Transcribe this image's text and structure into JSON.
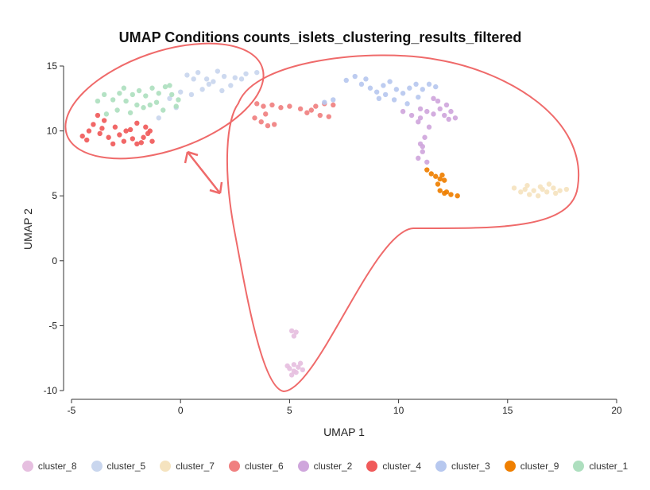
{
  "chart_data": {
    "type": "scatter",
    "title": "UMAP Conditions counts_islets_clustering_results_filtered",
    "xlabel": "UMAP 1",
    "ylabel": "UMAP 2",
    "xlim": [
      -5,
      20
    ],
    "ylim": [
      -10,
      15
    ],
    "xticks": [
      "-5",
      "0",
      "5",
      "10",
      "15",
      "20"
    ],
    "yticks": [
      "-10",
      "-5",
      "0",
      "5",
      "10",
      "15"
    ],
    "legend_position": "bottom",
    "series": [
      {
        "name": "cluster_8",
        "color": "#e6bfe0",
        "points": [
          [
            5.1,
            -5.4
          ],
          [
            5.3,
            -5.5
          ],
          [
            5.2,
            -5.8
          ],
          [
            4.9,
            -8.1
          ],
          [
            5.2,
            -8.0
          ],
          [
            5.4,
            -8.2
          ],
          [
            5.5,
            -7.9
          ],
          [
            5.3,
            -8.6
          ],
          [
            5.1,
            -8.8
          ],
          [
            5.0,
            -8.3
          ],
          [
            5.6,
            -8.4
          ],
          [
            5.2,
            -8.5
          ]
        ]
      },
      {
        "name": "cluster_5",
        "color": "#c9d6ee",
        "points": [
          [
            0.5,
            12.8
          ],
          [
            1.0,
            13.2
          ],
          [
            1.5,
            13.8
          ],
          [
            2.0,
            14.2
          ],
          [
            2.5,
            14.1
          ],
          [
            1.2,
            14.0
          ],
          [
            0.3,
            14.3
          ],
          [
            0.8,
            14.5
          ],
          [
            1.7,
            14.6
          ],
          [
            3.0,
            14.4
          ],
          [
            2.3,
            13.5
          ],
          [
            0.0,
            13.0
          ],
          [
            -0.5,
            12.5
          ],
          [
            -1.0,
            11.0
          ],
          [
            3.5,
            14.5
          ],
          [
            2.8,
            14.0
          ],
          [
            1.9,
            13.1
          ],
          [
            0.6,
            14.0
          ],
          [
            1.3,
            13.6
          ],
          [
            -0.2,
            11.8
          ]
        ]
      },
      {
        "name": "cluster_7",
        "color": "#f5e3bf",
        "points": [
          [
            15.3,
            5.6
          ],
          [
            15.6,
            5.3
          ],
          [
            15.9,
            5.8
          ],
          [
            16.2,
            5.4
          ],
          [
            16.5,
            5.7
          ],
          [
            16.8,
            5.3
          ],
          [
            17.1,
            5.6
          ],
          [
            17.4,
            5.4
          ],
          [
            17.7,
            5.5
          ],
          [
            16.0,
            5.1
          ],
          [
            16.4,
            5.0
          ],
          [
            16.9,
            5.9
          ],
          [
            15.8,
            5.5
          ],
          [
            16.6,
            5.5
          ],
          [
            17.2,
            5.2
          ]
        ]
      },
      {
        "name": "cluster_6",
        "color": "#f08080",
        "points": [
          [
            3.5,
            12.1
          ],
          [
            3.8,
            11.9
          ],
          [
            4.2,
            12.0
          ],
          [
            4.6,
            11.8
          ],
          [
            5.0,
            11.9
          ],
          [
            3.4,
            11.0
          ],
          [
            3.7,
            10.7
          ],
          [
            4.0,
            10.4
          ],
          [
            4.3,
            10.5
          ],
          [
            3.9,
            11.3
          ],
          [
            5.5,
            11.7
          ],
          [
            6.0,
            11.6
          ],
          [
            6.4,
            11.2
          ],
          [
            6.8,
            11.1
          ],
          [
            7.0,
            12.0
          ],
          [
            6.6,
            12.1
          ],
          [
            6.2,
            11.9
          ],
          [
            5.8,
            11.4
          ]
        ]
      },
      {
        "name": "cluster_2",
        "color": "#cfa6dc",
        "points": [
          [
            10.2,
            11.5
          ],
          [
            10.6,
            11.2
          ],
          [
            11.0,
            11.0
          ],
          [
            11.3,
            11.5
          ],
          [
            11.6,
            11.3
          ],
          [
            11.9,
            11.7
          ],
          [
            12.1,
            11.2
          ],
          [
            12.4,
            11.5
          ],
          [
            12.6,
            11.0
          ],
          [
            11.8,
            12.3
          ],
          [
            11.6,
            12.5
          ],
          [
            12.2,
            12.0
          ],
          [
            10.9,
            10.7
          ],
          [
            11.4,
            10.3
          ],
          [
            11.0,
            11.7
          ],
          [
            11.2,
            9.5
          ],
          [
            11.0,
            9.0
          ],
          [
            11.1,
            8.4
          ],
          [
            10.9,
            7.9
          ],
          [
            11.3,
            7.6
          ],
          [
            11.1,
            8.8
          ],
          [
            12.3,
            10.9
          ]
        ]
      },
      {
        "name": "cluster_4",
        "color": "#f05a5a",
        "points": [
          [
            -4.5,
            9.6
          ],
          [
            -4.2,
            10.0
          ],
          [
            -4.0,
            10.5
          ],
          [
            -3.7,
            9.8
          ],
          [
            -3.5,
            10.8
          ],
          [
            -3.3,
            9.5
          ],
          [
            -3.0,
            10.3
          ],
          [
            -2.8,
            9.7
          ],
          [
            -2.5,
            10.0
          ],
          [
            -2.2,
            9.4
          ],
          [
            -2.0,
            10.6
          ],
          [
            -1.7,
            9.5
          ],
          [
            -1.5,
            9.8
          ],
          [
            -1.3,
            9.2
          ],
          [
            -1.8,
            9.1
          ],
          [
            -3.8,
            11.2
          ],
          [
            -2.6,
            9.2
          ],
          [
            -3.1,
            9.0
          ],
          [
            -4.3,
            9.3
          ],
          [
            -1.6,
            10.3
          ],
          [
            -2.3,
            10.1
          ],
          [
            -3.6,
            10.2
          ],
          [
            -2.0,
            9.0
          ],
          [
            -1.4,
            10.0
          ]
        ]
      },
      {
        "name": "cluster_3",
        "color": "#b7c8ef",
        "points": [
          [
            7.6,
            13.9
          ],
          [
            8.0,
            14.2
          ],
          [
            8.3,
            13.6
          ],
          [
            8.7,
            13.3
          ],
          [
            9.0,
            13.0
          ],
          [
            9.3,
            13.5
          ],
          [
            9.6,
            13.8
          ],
          [
            9.9,
            13.2
          ],
          [
            10.2,
            12.9
          ],
          [
            10.5,
            13.3
          ],
          [
            10.8,
            13.6
          ],
          [
            11.1,
            13.2
          ],
          [
            11.4,
            13.6
          ],
          [
            11.7,
            13.4
          ],
          [
            9.1,
            12.5
          ],
          [
            9.8,
            12.4
          ],
          [
            10.4,
            12.1
          ],
          [
            8.5,
            14.0
          ],
          [
            9.4,
            12.8
          ],
          [
            10.9,
            12.6
          ],
          [
            7.0,
            12.4
          ],
          [
            6.6,
            12.2
          ]
        ]
      },
      {
        "name": "cluster_9",
        "color": "#ef7f00",
        "points": [
          [
            11.5,
            6.7
          ],
          [
            11.7,
            6.5
          ],
          [
            11.9,
            6.3
          ],
          [
            12.0,
            6.6
          ],
          [
            12.1,
            6.2
          ],
          [
            11.8,
            5.9
          ],
          [
            11.9,
            5.4
          ],
          [
            12.1,
            5.2
          ],
          [
            12.4,
            5.1
          ],
          [
            12.7,
            5.0
          ],
          [
            11.3,
            7.0
          ],
          [
            12.2,
            5.3
          ]
        ]
      },
      {
        "name": "cluster_1",
        "color": "#aedfbf",
        "points": [
          [
            -3.8,
            12.3
          ],
          [
            -3.5,
            12.8
          ],
          [
            -3.1,
            12.4
          ],
          [
            -2.8,
            12.9
          ],
          [
            -2.5,
            12.3
          ],
          [
            -2.2,
            12.8
          ],
          [
            -1.9,
            13.1
          ],
          [
            -1.6,
            12.7
          ],
          [
            -1.3,
            13.3
          ],
          [
            -1.0,
            12.9
          ],
          [
            -0.7,
            13.4
          ],
          [
            -0.4,
            12.8
          ],
          [
            -0.1,
            12.4
          ],
          [
            -2.9,
            11.6
          ],
          [
            -2.3,
            11.4
          ],
          [
            -1.7,
            11.8
          ],
          [
            -1.1,
            12.2
          ],
          [
            -0.8,
            11.6
          ],
          [
            -3.4,
            11.3
          ],
          [
            -0.5,
            13.5
          ],
          [
            -1.4,
            12.0
          ],
          [
            -2.0,
            12.0
          ],
          [
            -0.2,
            11.9
          ],
          [
            -2.6,
            13.3
          ]
        ]
      }
    ],
    "annotations": [
      {
        "type": "ellipse"
      },
      {
        "type": "outline"
      },
      {
        "type": "double-arrow"
      }
    ]
  }
}
